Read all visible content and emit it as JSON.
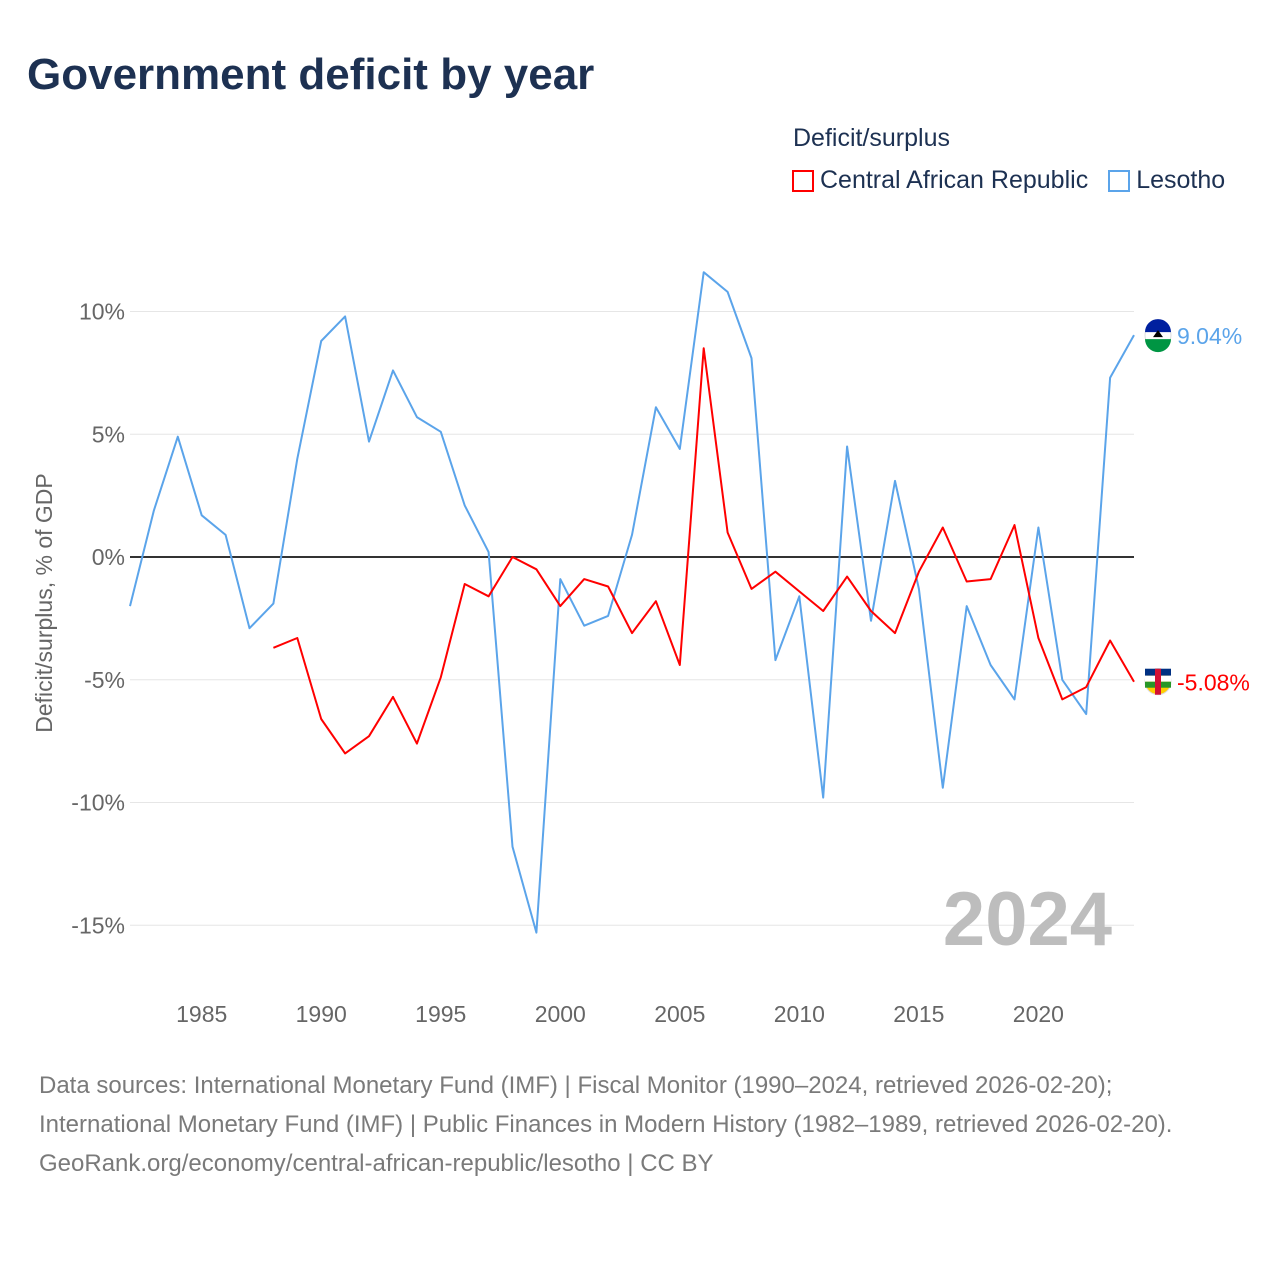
{
  "chart_data": {
    "type": "line",
    "title": "Government deficit by year",
    "legend_title": "Deficit/surplus",
    "ylabel": "Deficit/surplus, % of GDP",
    "xlabel": "",
    "ylim": [
      -17,
      14
    ],
    "xlim": [
      1982,
      2024
    ],
    "yticks": [
      10,
      5,
      0,
      -5,
      -10,
      -15
    ],
    "ytick_labels": [
      "10%",
      "5%",
      "0%",
      "-5%",
      "-10%",
      "-15%"
    ],
    "xticks": [
      1985,
      1990,
      1995,
      2000,
      2005,
      2010,
      2015,
      2020
    ],
    "xtick_labels": [
      "1985",
      "1990",
      "1995",
      "2000",
      "2005",
      "2010",
      "2015",
      "2020"
    ],
    "year_label": "2024",
    "series": [
      {
        "name": "Central African Republic",
        "color": "#ff0000",
        "end_label": "-5.08%",
        "start_year": 1988,
        "values": [
          -3.7,
          -3.3,
          -6.6,
          -8.0,
          -7.3,
          -5.7,
          -7.6,
          -4.9,
          -1.1,
          -1.6,
          0.0,
          -0.5,
          -2.0,
          -0.9,
          -1.2,
          -3.1,
          -1.8,
          -4.4,
          8.5,
          1.0,
          -1.3,
          -0.6,
          -1.4,
          -2.2,
          -0.8,
          -2.2,
          -3.1,
          -0.6,
          1.2,
          -1.0,
          -0.9,
          1.3,
          -3.3,
          -5.8,
          -5.3,
          -3.4,
          -5.08
        ]
      },
      {
        "name": "Lesotho",
        "color": "#5ba4ea",
        "end_label": "9.04%",
        "start_year": 1982,
        "values": [
          -2.0,
          1.9,
          4.9,
          1.7,
          0.9,
          -2.9,
          -1.9,
          4.0,
          8.8,
          9.8,
          4.7,
          7.6,
          5.7,
          5.1,
          2.1,
          0.2,
          -11.8,
          -15.3,
          -0.9,
          -2.8,
          -2.4,
          0.9,
          6.1,
          4.4,
          11.6,
          10.8,
          8.1,
          -4.2,
          -1.6,
          -9.8,
          4.5,
          -2.6,
          3.1,
          -1.3,
          -9.4,
          -2.0,
          -4.4,
          -5.8,
          1.2,
          -5.0,
          -6.4,
          7.3,
          9.04
        ]
      }
    ]
  },
  "footer": {
    "sources": "Data sources: International Monetary Fund (IMF) | Fiscal Monitor (1990–2024, retrieved 2026-02-20); International Monetary Fund (IMF) | Public Finances in Modern History (1982–1989, retrieved 2026-02-20).",
    "credit": "GeoRank.org/economy/central-african-republic/lesotho | CC BY"
  }
}
